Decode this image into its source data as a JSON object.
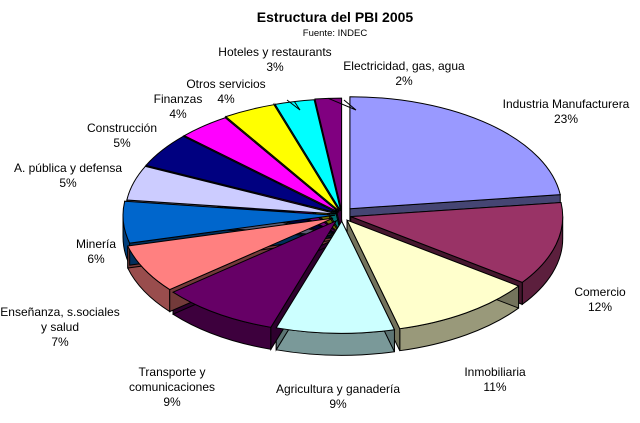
{
  "chart_data": {
    "type": "pie",
    "title": "Estructura del PBI 2005",
    "subtitle": "Fuente: INDEC",
    "unit": "%",
    "slices": [
      {
        "label": "Industria Manufacturera",
        "value": 23,
        "value_label": "23%",
        "color": "#9999ff"
      },
      {
        "label": "Comercio",
        "value": 12,
        "value_label": "12%",
        "color": "#993366"
      },
      {
        "label": "Inmobiliaria",
        "value": 11,
        "value_label": "11%",
        "color": "#ffffcc"
      },
      {
        "label": "Agricultura y ganadería",
        "value": 9,
        "value_label": "9%",
        "color": "#ccffff"
      },
      {
        "label": "Transporte y comunicaciones",
        "value": 9,
        "value_label": "9%",
        "color": "#660066"
      },
      {
        "label": "Enseñanza, s.sociales y salud",
        "value": 7,
        "value_label": "7%",
        "color": "#ff8080"
      },
      {
        "label": "Minería",
        "value": 6,
        "value_label": "6%",
        "color": "#0066cc"
      },
      {
        "label": "A. pública y defensa",
        "value": 5,
        "value_label": "5%",
        "color": "#ccccff"
      },
      {
        "label": "Construcción",
        "value": 5,
        "value_label": "5%",
        "color": "#000080"
      },
      {
        "label": "Finanzas",
        "value": 4,
        "value_label": "4%",
        "color": "#ff00ff"
      },
      {
        "label": "Otros servicios",
        "value": 4,
        "value_label": "4%",
        "color": "#ffff00"
      },
      {
        "label": "Hoteles y restaurants",
        "value": 3,
        "value_label": "3%",
        "color": "#00ffff"
      },
      {
        "label": "Electricidad, gas, agua",
        "value": 2,
        "value_label": "2%",
        "color": "#800080"
      }
    ]
  }
}
